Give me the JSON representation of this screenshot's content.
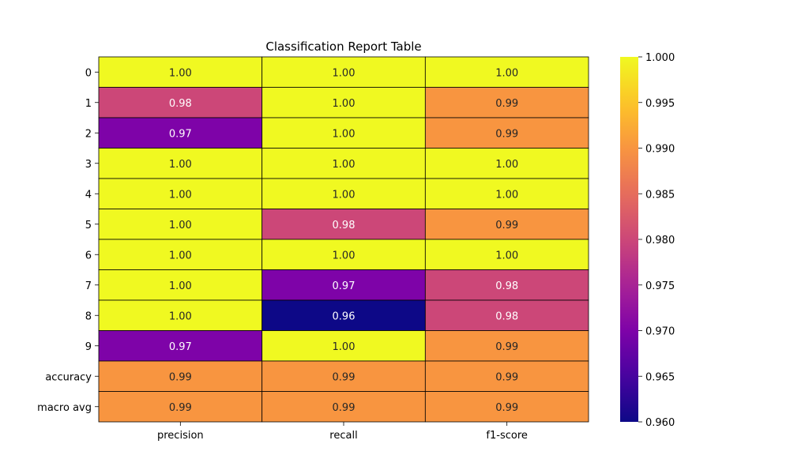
{
  "chart_data": {
    "type": "heatmap",
    "title": "Classification Report Table",
    "columns": [
      "precision",
      "recall",
      "f1-score"
    ],
    "rows": [
      "0",
      "1",
      "2",
      "3",
      "4",
      "5",
      "6",
      "7",
      "8",
      "9",
      "accuracy",
      "macro avg"
    ],
    "values": [
      [
        1.0,
        1.0,
        1.0
      ],
      [
        0.98,
        1.0,
        0.99
      ],
      [
        0.97,
        1.0,
        0.99
      ],
      [
        1.0,
        1.0,
        1.0
      ],
      [
        1.0,
        1.0,
        1.0
      ],
      [
        1.0,
        0.98,
        0.99
      ],
      [
        1.0,
        1.0,
        1.0
      ],
      [
        1.0,
        0.97,
        0.98
      ],
      [
        1.0,
        0.96,
        0.98
      ],
      [
        0.97,
        1.0,
        0.99
      ],
      [
        0.99,
        0.99,
        0.99
      ],
      [
        0.99,
        0.99,
        0.99
      ]
    ],
    "cell_labels": [
      [
        "1.00",
        "1.00",
        "1.00"
      ],
      [
        "0.98",
        "1.00",
        "0.99"
      ],
      [
        "0.97",
        "1.00",
        "0.99"
      ],
      [
        "1.00",
        "1.00",
        "1.00"
      ],
      [
        "1.00",
        "1.00",
        "1.00"
      ],
      [
        "1.00",
        "0.98",
        "0.99"
      ],
      [
        "1.00",
        "1.00",
        "1.00"
      ],
      [
        "1.00",
        "0.97",
        "0.98"
      ],
      [
        "1.00",
        "0.96",
        "0.98"
      ],
      [
        "0.97",
        "1.00",
        "0.99"
      ],
      [
        "0.99",
        "0.99",
        "0.99"
      ],
      [
        "0.99",
        "0.99",
        "0.99"
      ]
    ],
    "colorbar": {
      "vmin": 0.96,
      "vmax": 1.0,
      "ticks": [
        "0.960",
        "0.965",
        "0.970",
        "0.975",
        "0.980",
        "0.985",
        "0.990",
        "0.995",
        "1.000"
      ],
      "colormap": "plasma"
    },
    "grid": true,
    "cell_colors": {
      "1.00": "#f0f921",
      "0.99": "#f89540",
      "0.98": "#cc4778",
      "0.97": "#7e03a8",
      "0.96": "#0d0887"
    }
  }
}
